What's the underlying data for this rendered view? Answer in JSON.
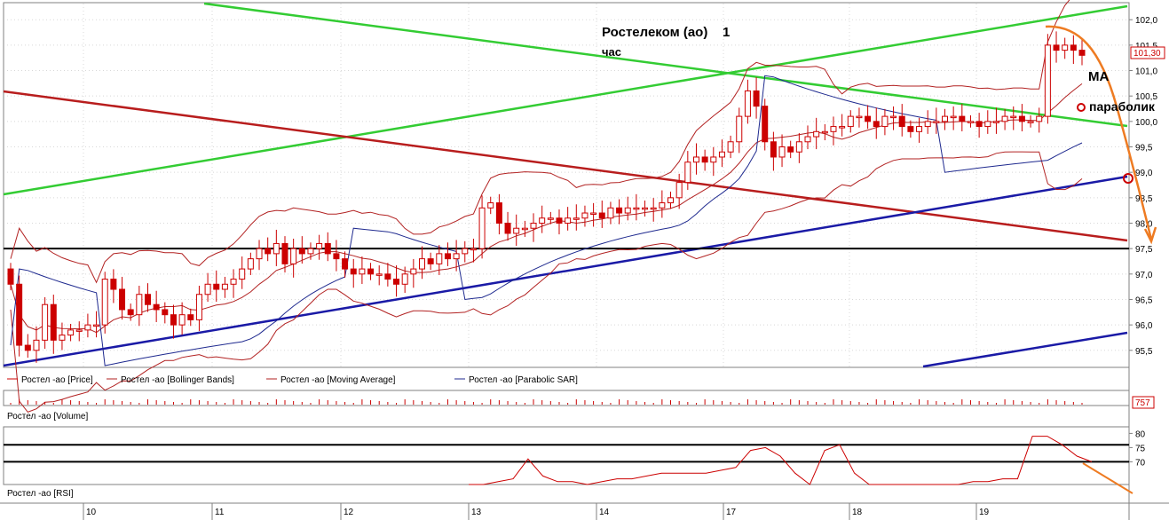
{
  "annotations": {
    "title_line1": "Ростелеком (ао)    1",
    "title_line2": "час",
    "ma_label": "MA",
    "parabolic_label": "параболик"
  },
  "colors": {
    "candle_up": "#ffffff",
    "candle_down": "#cc0000",
    "candle_outline": "#cc0000",
    "bollinger": "#b22222",
    "moving_average": "#b22222",
    "parabolic_sar": "#1f2a8f",
    "trend_green": "#33cc33",
    "trend_red": "#b81d1d",
    "trend_blue": "#1a1aa6",
    "level_black": "#000000",
    "forecast_orange": "#ee7b22",
    "rsi": "#cc0000",
    "price_tag": "#cc0000"
  },
  "chart_data": [
    {
      "type": "candlestick",
      "panel": "price",
      "y_ticks": [
        "102,0",
        "101,5",
        "101,0",
        "100,5",
        "100,0",
        "99,5",
        "99,0",
        "98,5",
        "98,0",
        "97,5",
        "97,0",
        "96,5",
        "96,0",
        "95,5"
      ],
      "ylim": [
        95.2,
        102.3
      ],
      "x_ticks": [
        "10",
        "11",
        "12",
        "13",
        "14",
        "17",
        "18",
        "19"
      ],
      "last_price_label": "101,30",
      "level_line": 97.5,
      "legend": [
        {
          "label": "Ростел -ао [Price]",
          "color": "#cc0000"
        },
        {
          "label": "Ростел -ао [Bollinger Bands]",
          "color": "#b22222"
        },
        {
          "label": "Ростел -ао [Moving Average]",
          "color": "#b22222"
        },
        {
          "label": "Ростел -ао [Parabolic SAR]",
          "color": "#1f2a8f"
        }
      ],
      "close": [
        96.8,
        95.6,
        95.5,
        95.7,
        96.4,
        95.7,
        95.8,
        95.9,
        95.9,
        96.0,
        96.0,
        96.9,
        96.7,
        96.3,
        96.2,
        96.6,
        96.4,
        96.3,
        96.2,
        96.0,
        96.2,
        96.1,
        96.6,
        96.8,
        96.7,
        96.8,
        96.9,
        97.1,
        97.3,
        97.5,
        97.4,
        97.6,
        97.2,
        97.5,
        97.4,
        97.5,
        97.6,
        97.4,
        97.3,
        97.1,
        97.0,
        97.1,
        97.0,
        97.0,
        96.9,
        96.8,
        97.0,
        97.1,
        97.3,
        97.2,
        97.4,
        97.3,
        97.4,
        97.5,
        97.5,
        98.3,
        98.4,
        98.0,
        97.8,
        97.9,
        97.9,
        98.0,
        98.1,
        98.1,
        98.0,
        98.1,
        98.1,
        98.2,
        98.2,
        98.1,
        98.3,
        98.2,
        98.3,
        98.3,
        98.3,
        98.3,
        98.4,
        98.5,
        98.8,
        99.2,
        99.3,
        99.2,
        99.3,
        99.4,
        99.6,
        100.1,
        100.6,
        100.3,
        99.6,
        99.3,
        99.5,
        99.4,
        99.6,
        99.7,
        99.8,
        99.8,
        99.9,
        99.9,
        100.1,
        100.1,
        100.0,
        99.9,
        100.1,
        100.1,
        99.9,
        99.8,
        99.9,
        100.0,
        100.0,
        100.1,
        100.1,
        100.0,
        100.0,
        99.9,
        100.0,
        100.0,
        100.1,
        100.1,
        100.0,
        100.0,
        100.1,
        101.5,
        101.4,
        101.5,
        101.4,
        101.3
      ],
      "bollinger_upper": [
        97.7,
        97.6,
        97.5,
        97.5,
        97.5,
        97.4,
        97.3,
        97.2,
        97.2,
        97.2,
        97.1,
        97.0,
        97.2,
        97.2,
        97.0,
        96.9,
        96.8,
        96.8,
        96.8,
        97.0,
        97.2,
        97.3,
        97.4,
        97.5,
        97.6,
        97.7,
        97.8,
        97.8,
        97.8,
        97.7,
        97.6,
        97.5,
        97.4,
        97.5,
        97.6,
        97.6,
        97.7,
        97.8,
        98.5,
        98.6,
        98.6,
        98.6,
        98.7,
        98.7,
        98.6,
        98.6,
        98.5,
        98.5,
        98.6,
        98.7,
        98.8,
        98.9,
        99.2,
        99.5,
        99.7,
        100.1,
        100.7,
        100.8,
        100.6,
        100.2,
        100.0,
        99.8,
        99.8,
        99.9,
        100.1,
        100.2,
        100.3,
        100.4,
        100.5,
        100.6,
        100.5,
        100.4,
        100.3,
        100.3,
        100.2,
        100.2,
        100.3,
        100.3,
        100.3,
        100.2,
        100.2,
        100.3,
        100.3,
        100.3,
        100.2,
        100.2,
        100.4,
        101.7,
        101.8,
        101.7
      ]
    },
    {
      "type": "bar",
      "panel": "volume",
      "title": "Ростел -ао [Volume]",
      "last_value_label": "757"
    },
    {
      "type": "line",
      "panel": "rsi",
      "title": "Ростел -ао [RSI]",
      "y_ticks": [
        "80",
        "75",
        "70"
      ],
      "levels": [
        76,
        70
      ],
      "series": [
        {
          "name": "",
          "values": [
            62,
            62,
            63,
            64,
            71,
            65,
            63,
            63,
            62,
            63,
            64,
            64,
            65,
            66,
            66,
            66,
            66,
            67,
            68,
            74,
            75,
            72,
            66,
            62,
            74,
            76,
            66,
            62,
            62,
            62,
            60,
            60,
            61,
            62,
            63,
            63,
            64,
            64,
            79,
            79,
            76,
            72,
            70
          ]
        }
      ]
    }
  ]
}
